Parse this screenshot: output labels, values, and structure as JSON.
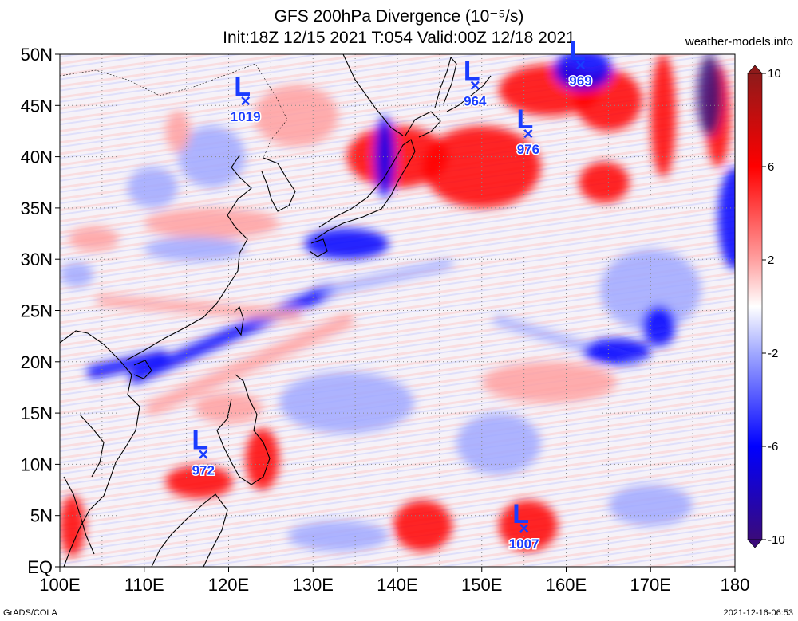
{
  "header": {
    "title_line1": "GFS 200hPa Divergence (10⁻⁵/s)",
    "title_line2": "Init:18Z 12/15 2021 T:054 Valid:00Z 12/18 2021",
    "source": "weather-models.info"
  },
  "footer": {
    "left": "GrADS/COLA",
    "right": "2021-12-16-06:53"
  },
  "map": {
    "lon_range": [
      100,
      180
    ],
    "lat_range": [
      0,
      50
    ],
    "x_ticks": [
      "100E",
      "110E",
      "120E",
      "130E",
      "140E",
      "150E",
      "160E",
      "170E",
      "180"
    ],
    "y_ticks": [
      "EQ",
      "5N",
      "10N",
      "15N",
      "20N",
      "25N",
      "30N",
      "35N",
      "40N",
      "45N",
      "50N"
    ],
    "colorbar": {
      "ticks": [
        "10",
        "6",
        "2",
        "-2",
        "-6",
        "-10"
      ],
      "tick_values": [
        10,
        6,
        2,
        -2,
        -6,
        -10
      ],
      "range": [
        -10,
        10
      ],
      "colors": {
        "max": "#8e1a1a",
        "strong_pos": "#ff0000",
        "pos": "#ffa0a0",
        "zero": "#ffffff",
        "neg": "#a0a8ff",
        "strong_neg": "#0000ff",
        "min": "#3a0a7a"
      }
    },
    "lows": [
      {
        "lon": 122.0,
        "lat": 45.5,
        "label": "L",
        "pressure": "1019"
      },
      {
        "lon": 149.2,
        "lat": 47.0,
        "label": "L",
        "pressure": "964"
      },
      {
        "lon": 161.7,
        "lat": 49.0,
        "label": "L",
        "pressure": "969"
      },
      {
        "lon": 155.5,
        "lat": 42.3,
        "label": "L",
        "pressure": "976"
      },
      {
        "lon": 117.0,
        "lat": 11.0,
        "label": "L",
        "pressure": "972"
      },
      {
        "lon": 155.0,
        "lat": 3.8,
        "label": "L",
        "pressure": "1007"
      }
    ],
    "features": [
      {
        "value": 7,
        "lon": 158,
        "lat": 46.5,
        "rx": 6,
        "ry": 2.5
      },
      {
        "value": 8,
        "lon": 165,
        "lat": 45.5,
        "rx": 4,
        "ry": 3
      },
      {
        "value": 8,
        "lon": 171.5,
        "lat": 44,
        "rx": 1.5,
        "ry": 6
      },
      {
        "value": 7,
        "lon": 178,
        "lat": 44,
        "rx": 1.5,
        "ry": 5
      },
      {
        "value": -9,
        "lon": 177,
        "lat": 46,
        "rx": 1.5,
        "ry": 4
      },
      {
        "value": -8,
        "lon": 180,
        "lat": 34,
        "rx": 2,
        "ry": 5
      },
      {
        "value": -7,
        "lon": 162,
        "lat": 48.5,
        "rx": 3.5,
        "ry": 2
      },
      {
        "value": 7,
        "lon": 164.5,
        "lat": 37.5,
        "rx": 3,
        "ry": 2
      },
      {
        "value": 6,
        "lon": 150,
        "lat": 39,
        "rx": 7,
        "ry": 4
      },
      {
        "value": 5,
        "lon": 140,
        "lat": 40,
        "rx": 6,
        "ry": 3
      },
      {
        "value": -6,
        "lon": 138.5,
        "lat": 40,
        "rx": 1.2,
        "ry": 4
      },
      {
        "value": -4,
        "lon": 111,
        "lat": 37,
        "rx": 3,
        "ry": 2
      },
      {
        "value": -4,
        "lon": 118,
        "lat": 40,
        "rx": 4,
        "ry": 3
      },
      {
        "value": 4,
        "lon": 114,
        "lat": 42.5,
        "rx": 1.5,
        "ry": 2
      },
      {
        "value": 4,
        "lon": 128,
        "lat": 44,
        "rx": 5,
        "ry": 3
      },
      {
        "value": -5,
        "lon": 134,
        "lat": 31.5,
        "rx": 5,
        "ry": 1.5
      },
      {
        "value": 4,
        "lon": 118,
        "lat": 33.5,
        "rx": 8,
        "ry": 1.5
      },
      {
        "value": -4,
        "lon": 116,
        "lat": 31,
        "rx": 6,
        "ry": 1.2
      },
      {
        "value": 3,
        "lon": 104,
        "lat": 32,
        "rx": 3,
        "ry": 1.2
      },
      {
        "value": -4,
        "lon": 102,
        "lat": 28.5,
        "rx": 2,
        "ry": 1.2
      },
      {
        "value": -3,
        "lon": 170,
        "lat": 27,
        "rx": 6,
        "ry": 4
      },
      {
        "value": -6,
        "lon": 171,
        "lat": 23.5,
        "rx": 2,
        "ry": 2
      },
      {
        "value": -5,
        "lon": 166,
        "lat": 21,
        "rx": 4,
        "ry": 1.3
      },
      {
        "value": 3,
        "lon": 158,
        "lat": 18,
        "rx": 8,
        "ry": 2
      },
      {
        "value": -3,
        "lon": 134,
        "lat": 16,
        "rx": 8,
        "ry": 3
      },
      {
        "value": -3,
        "lon": 152,
        "lat": 12,
        "rx": 5,
        "ry": 3
      },
      {
        "value": 6,
        "lon": 116.5,
        "lat": 8.3,
        "rx": 4,
        "ry": 1.6
      },
      {
        "value": 5,
        "lon": 124,
        "lat": 10.5,
        "rx": 2,
        "ry": 3
      },
      {
        "value": 7,
        "lon": 143,
        "lat": 4,
        "rx": 3.5,
        "ry": 2.5
      },
      {
        "value": 6,
        "lon": 155.5,
        "lat": 4,
        "rx": 3.5,
        "ry": 2.5
      },
      {
        "value": 6,
        "lon": 101.5,
        "lat": 4,
        "rx": 1.5,
        "ry": 3
      },
      {
        "value": -4,
        "lon": 133,
        "lat": 3,
        "rx": 6,
        "ry": 1.5
      },
      {
        "value": -3,
        "lon": 170,
        "lat": 6,
        "rx": 5,
        "ry": 2
      },
      {
        "value": 3,
        "lon": 120,
        "lat": 15.5,
        "rx": 4,
        "ry": 1.5
      }
    ],
    "band_features": [
      {
        "value": -6,
        "from": [
          109,
          18.5
        ],
        "to": [
          132,
          27
        ],
        "width": 1.3
      },
      {
        "value": -4,
        "from": [
          132,
          27
        ],
        "to": [
          146,
          29.5
        ],
        "width": 1.0
      },
      {
        "value": 4,
        "from": [
          111,
          15.5
        ],
        "to": [
          134,
          24
        ],
        "width": 1.4
      },
      {
        "value": -3,
        "from": [
          152,
          24
        ],
        "to": [
          168,
          20
        ],
        "width": 1.0
      },
      {
        "value": 3,
        "from": [
          105,
          26
        ],
        "to": [
          128,
          24.5
        ],
        "width": 1.1
      },
      {
        "value": -6,
        "from": [
          104,
          19
        ],
        "to": [
          112,
          20.5
        ],
        "width": 1.3
      }
    ]
  }
}
